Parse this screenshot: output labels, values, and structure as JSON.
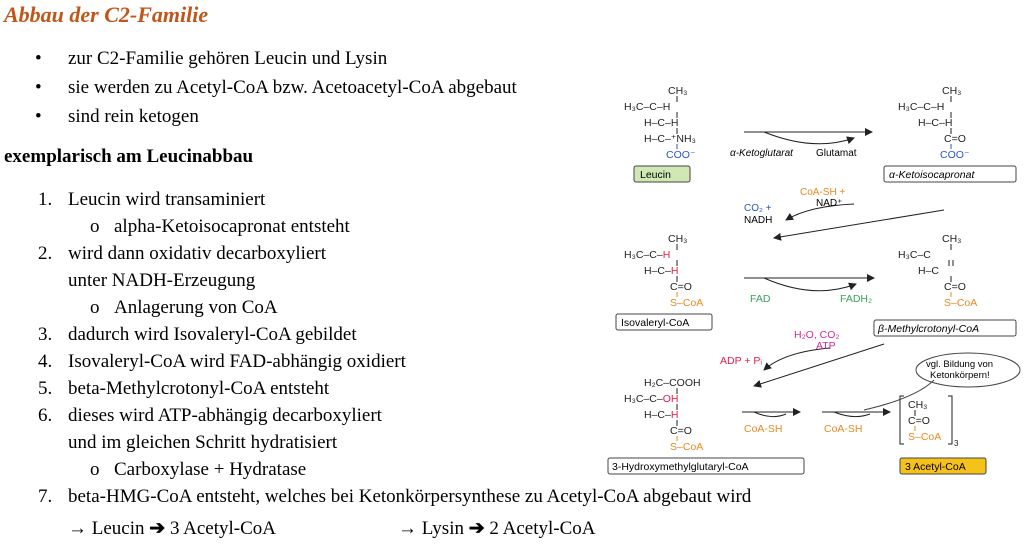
{
  "title": "Abbau der C2-Familie",
  "bullets": [
    "zur C2-Familie gehören Leucin und Lysin",
    "sie werden zu Acetyl-CoA bzw. Acetoacetyl-CoA abgebaut",
    "sind rein ketogen"
  ],
  "subheading": "exemplarisch am Leucinabbau",
  "steps": [
    {
      "num": "1.",
      "lines": [
        "Leucin wird transaminiert"
      ],
      "sub": "alpha-Ketoisocapronat entsteht"
    },
    {
      "num": "2.",
      "lines": [
        "wird dann oxidativ decarboxyliert",
        "unter NADH-Erzeugung"
      ],
      "sub": "Anlagerung von CoA"
    },
    {
      "num": "3.",
      "lines": [
        "dadurch wird Isovaleryl-CoA gebildet"
      ]
    },
    {
      "num": "4.",
      "lines": [
        "Isovaleryl-CoA wird FAD-abhängig oxidiert"
      ]
    },
    {
      "num": "5.",
      "lines": [
        "beta-Methylcrotonyl-CoA entsteht"
      ]
    },
    {
      "num": "6.",
      "lines": [
        "dieses wird ATP-abhängig decarboxyliert",
        "und im gleichen Schritt hydratisiert"
      ],
      "sub": "Carboxylase + Hydratase"
    },
    {
      "num": "7.",
      "lines": [
        "beta-HMG-CoA entsteht, welches bei Ketonkörpersynthese zu Acetyl-CoA abgebaut wird"
      ]
    }
  ],
  "summary": {
    "leucin": [
      "Leucin",
      "3 Acetyl-CoA"
    ],
    "lysin": [
      "Lysin",
      "2 Acetyl-CoA"
    ]
  },
  "diagram": {
    "compounds": {
      "leucin": "Leucin",
      "ketoisocapronat": "α-Ketoisocapronat",
      "isovaleryl": "Isovaleryl-CoA",
      "methylcrotonyl": "β-Methylcrotonyl-CoA",
      "hmg": "3-Hydroxymethylglutaryl-CoA",
      "acetyl": "3 Acetyl-CoA"
    },
    "reactants": {
      "ketoglutarat": "α-Ketoglutarat",
      "glutamat": "Glutamat",
      "coash_nad_1": "CoA-SH +",
      "coash_nad_2": "NAD⁺",
      "co2": "CO₂ +",
      "nadh": "NADH",
      "fad": "FAD",
      "fadh2": "FADH₂",
      "h2o_co2": "H₂O, CO₂",
      "atp": "ATP",
      "adp": "ADP + Pᵢ",
      "coash_a": "CoA-SH",
      "coash_b": "CoA-SH"
    },
    "callout": [
      "vgl. Bildung von",
      "Ketonkörpern!"
    ],
    "colors": {
      "orange": "#e8891e",
      "green": "#3aa35a",
      "red": "#e0204a",
      "magenta": "#d12a9c",
      "blue": "#2a55c7",
      "leucin_box": "#cfe8b4",
      "acetyl_box": "#f6c21a"
    }
  }
}
